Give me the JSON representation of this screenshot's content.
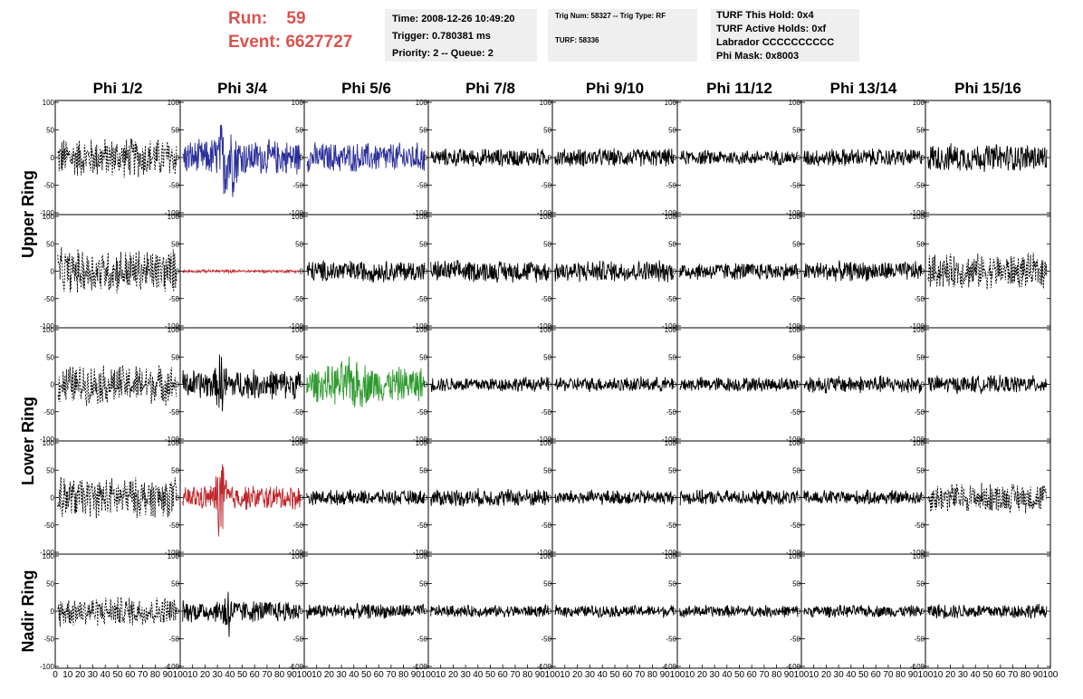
{
  "header": {
    "run_label": "Run:",
    "run_value": "59",
    "event_label": "Event:",
    "event_value": "6627727"
  },
  "info_time": {
    "time": "Time: 2008-12-26 10:49:20",
    "trigger": "Trigger: 0.780381 ms",
    "priority": "Priority: 2 -- Queue: 2"
  },
  "info_trig": {
    "trig": "Trig Num: 58327 -- Trig Type: RF",
    "turf": "TURF: 58336"
  },
  "info_turf": {
    "hold": "TURF This Hold: 0x4",
    "active": "TURF Active Holds: 0xf",
    "labrador": "Labrador CCCCCCCCCC",
    "phimask": "Phi Mask: 0x8003"
  },
  "colors": {
    "header_red": "#d9534f",
    "blue": "#2b2f9a",
    "red": "#c0262b",
    "green": "#2e9a2e",
    "black": "#000000"
  },
  "chart_data": {
    "type": "line",
    "columns": [
      "Phi 1/2",
      "Phi 3/4",
      "Phi 5/6",
      "Phi 7/8",
      "Phi 9/10",
      "Phi 11/12",
      "Phi 13/14",
      "Phi 15/16"
    ],
    "rows": [
      "Upper Ring",
      "Upper Ring",
      "Lower Ring",
      "Lower Ring",
      "Nadir Ring"
    ],
    "ring_labels": [
      "Upper Ring",
      "Lower Ring",
      "Nadir Ring"
    ],
    "xlim": [
      0,
      100
    ],
    "ylim": [
      -100,
      100
    ],
    "xticks": [
      0,
      10,
      20,
      30,
      40,
      50,
      60,
      70,
      80,
      90,
      100
    ],
    "yticks": [
      100,
      50,
      0,
      -50,
      -100
    ],
    "styles": [
      [
        "dashed",
        "blue",
        "blue",
        "black",
        "black",
        "black",
        "black",
        "black"
      ],
      [
        "dashed",
        "red",
        "black",
        "black",
        "black",
        "black",
        "black",
        "dashed"
      ],
      [
        "dashed",
        "black",
        "green",
        "black",
        "black",
        "black",
        "black",
        "black"
      ],
      [
        "dashed",
        "red",
        "black",
        "black",
        "black",
        "black",
        "black",
        "dashed"
      ],
      [
        "dashed",
        "black",
        "black",
        "black",
        "black",
        "black",
        "black",
        "black"
      ]
    ],
    "amplitudes": [
      [
        40,
        35,
        30,
        18,
        18,
        15,
        18,
        28
      ],
      [
        45,
        3,
        22,
        22,
        22,
        18,
        20,
        35
      ],
      [
        40,
        30,
        35,
        15,
        15,
        15,
        18,
        18
      ],
      [
        40,
        25,
        15,
        18,
        15,
        15,
        15,
        30
      ],
      [
        30,
        22,
        15,
        12,
        12,
        12,
        12,
        15
      ]
    ],
    "pulses": [
      [
        null,
        {
          "center": 38,
          "width": 8,
          "peak": 95
        },
        null,
        null,
        null,
        null,
        null,
        null
      ],
      [
        null,
        null,
        null,
        null,
        null,
        null,
        null,
        null
      ],
      [
        null,
        {
          "center": 33,
          "width": 3,
          "peak": 75
        },
        {
          "center": 38,
          "width": 12,
          "peak": 55
        },
        null,
        null,
        null,
        null,
        null
      ],
      [
        null,
        {
          "center": 33,
          "width": 4,
          "peak": 100
        },
        null,
        null,
        null,
        null,
        null,
        null
      ],
      [
        null,
        {
          "center": 38,
          "width": 3,
          "peak": 70
        },
        null,
        null,
        null,
        null,
        null,
        null
      ]
    ]
  }
}
